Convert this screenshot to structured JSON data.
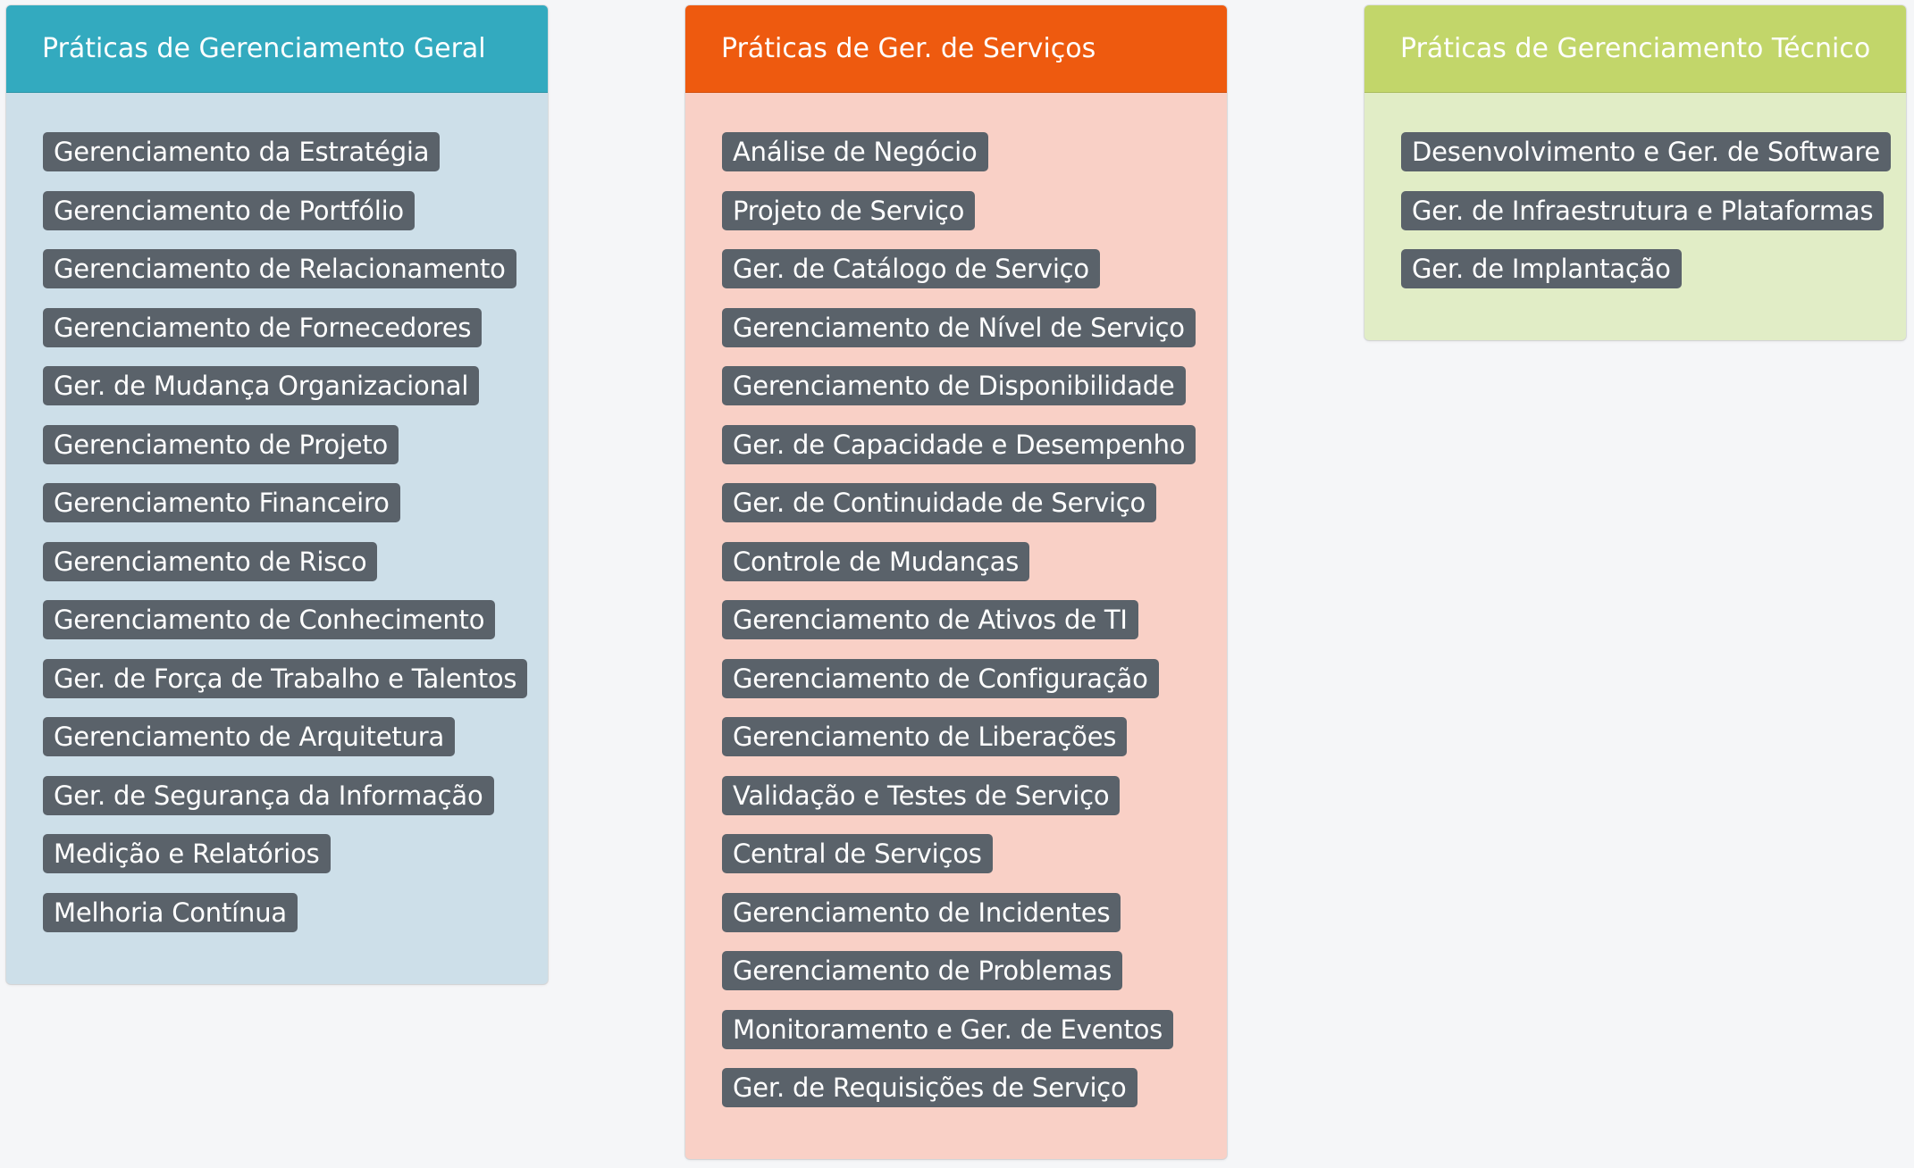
{
  "columns": [
    {
      "title": "Práticas de Gerenciamento Geral",
      "header_color": "#33aabf",
      "body_color": "#cddfe9",
      "items": [
        "Gerenciamento da Estratégia",
        "Gerenciamento de Portfólio",
        "Gerenciamento de Relacionamento",
        "Gerenciamento de Fornecedores",
        "Ger. de Mudança Organizacional",
        "Gerenciamento de Projeto",
        "Gerenciamento Financeiro",
        "Gerenciamento de Risco",
        "Gerenciamento de Conhecimento",
        "Ger. de Força de Trabalho e Talentos",
        "Gerenciamento de Arquitetura",
        "Ger. de Segurança da Informação",
        "Medição e Relatórios",
        "Melhoria Contínua"
      ]
    },
    {
      "title": "Práticas de Ger. de Serviços",
      "header_color": "#ee5a0f",
      "body_color": "#f9d0c6",
      "items": [
        "Análise de Negócio",
        "Projeto de Serviço",
        "Ger. de Catálogo de Serviço",
        "Gerenciamento de Nível de Serviço",
        "Gerenciamento de Disponibilidade",
        "Ger. de Capacidade e Desempenho",
        "Ger. de Continuidade de Serviço",
        "Controle de Mudanças",
        "Gerenciamento de Ativos de TI",
        "Gerenciamento de Configuração",
        "Gerenciamento de Liberações",
        "Validação e Testes de Serviço",
        "Central de Serviços",
        "Gerenciamento de Incidentes",
        "Gerenciamento de Problemas",
        "Monitoramento e Ger. de Eventos",
        "Ger. de Requisições de Serviço"
      ]
    },
    {
      "title": "Práticas de Gerenciamento Técnico",
      "header_color": "#c2d66a",
      "body_color": "#e1edc6",
      "items": [
        "Desenvolvimento e Ger. de Software",
        "Ger. de Infraestrutura e Plataformas",
        "Ger. de Implantação"
      ]
    }
  ]
}
